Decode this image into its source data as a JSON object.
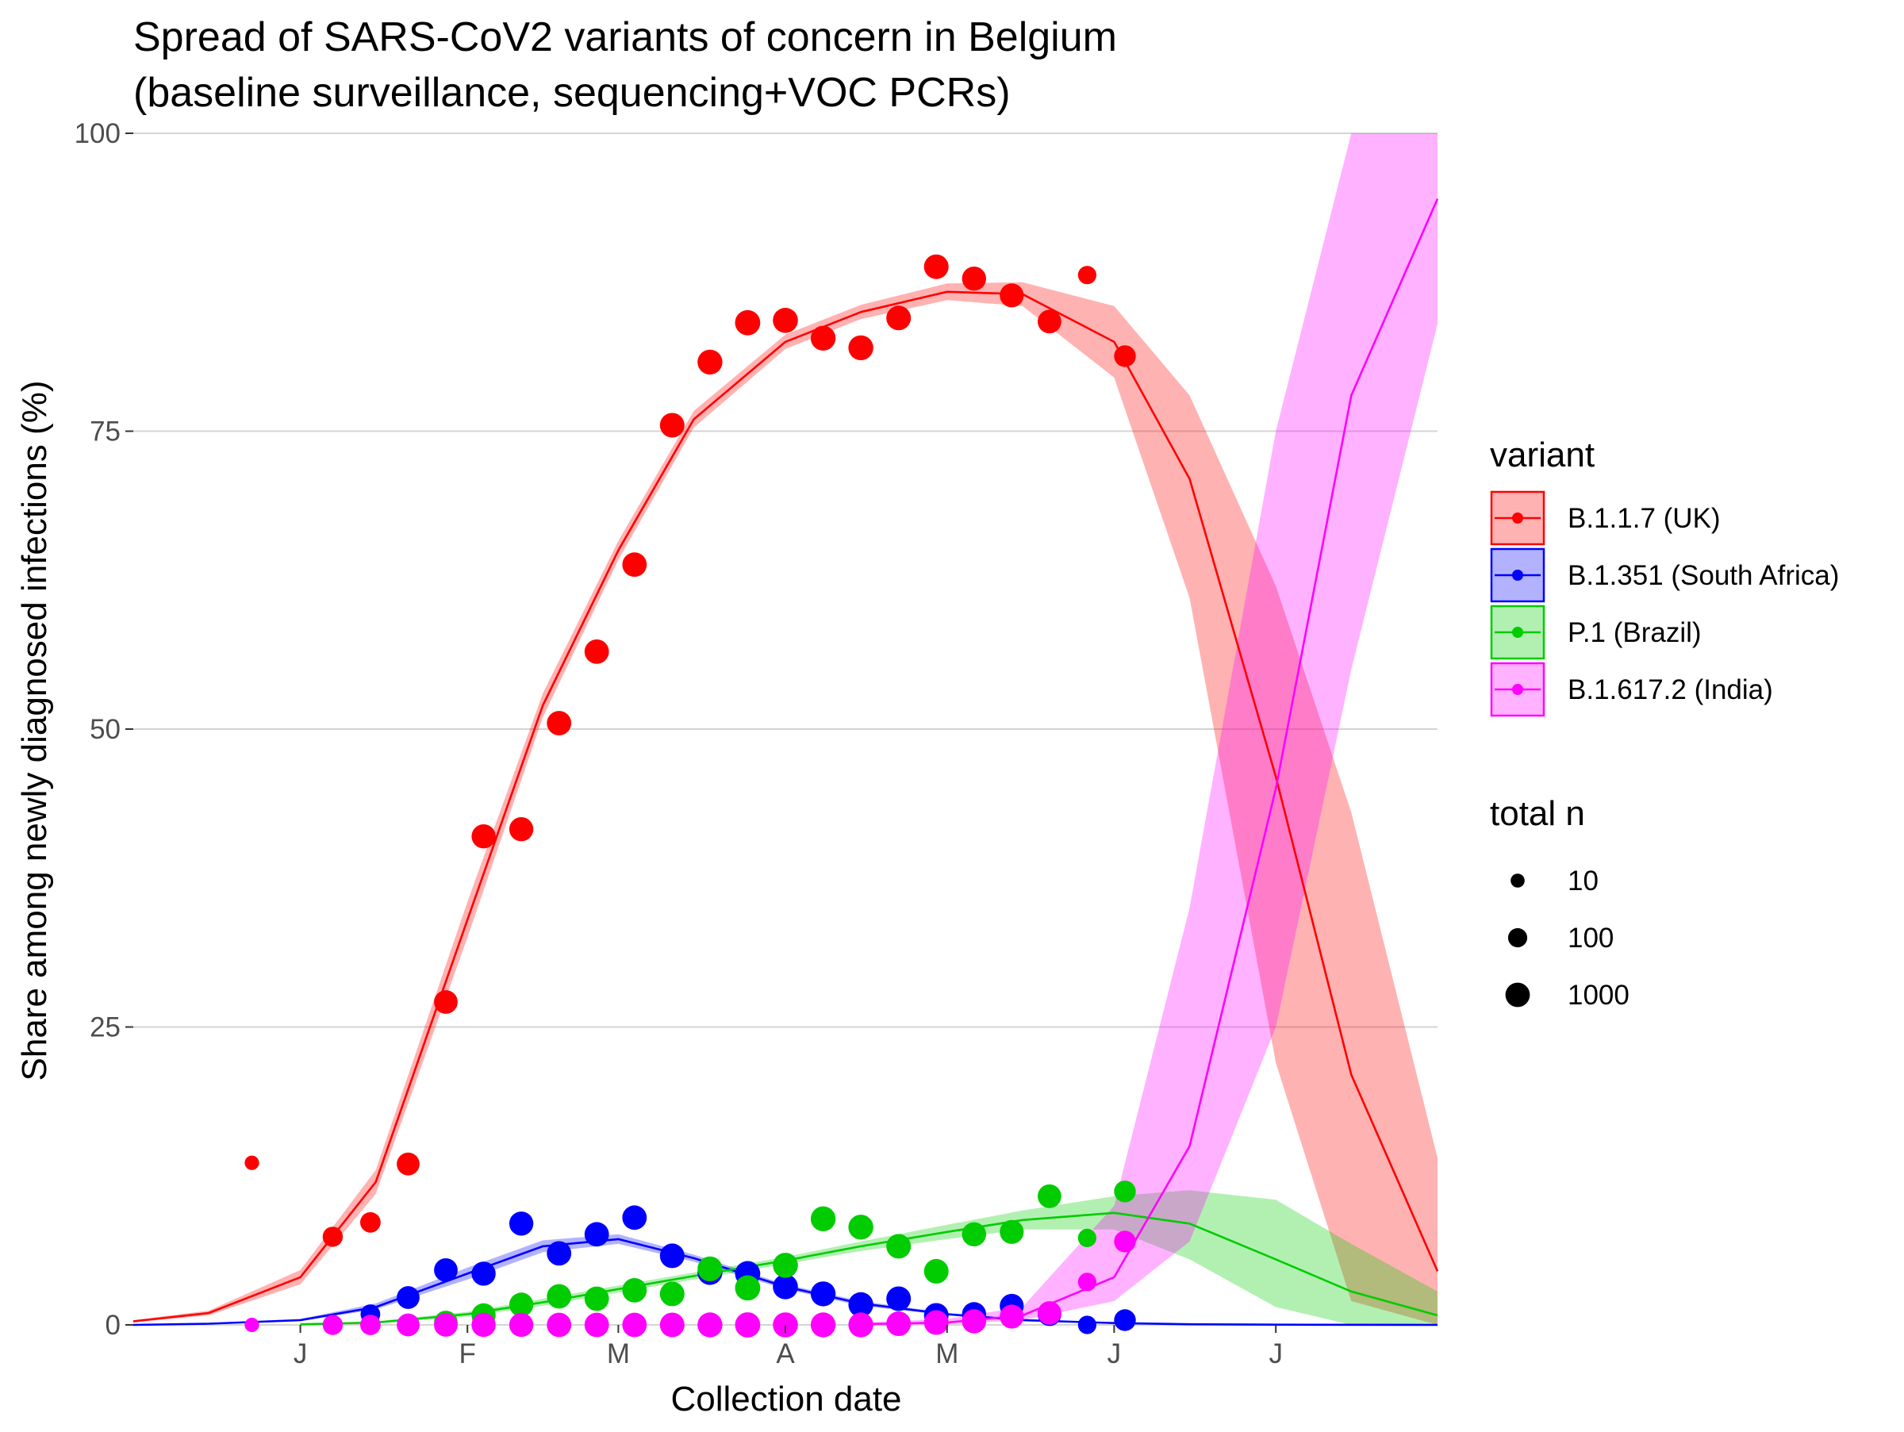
{
  "chart_data": {
    "type": "scatter",
    "title": "Spread of SARS-CoV2 variants of concern in Belgium",
    "subtitle": "(baseline surveillance, sequencing+VOC PCRs)",
    "xlabel": "Collection date",
    "ylabel": "Share among newly diagnosed infections (%)",
    "ylim": [
      0,
      100
    ],
    "yticks": [
      0,
      25,
      50,
      75,
      100
    ],
    "xlim": [
      "2020-12-01",
      "2021-07-31"
    ],
    "xticks": [
      {
        "date": "2021-01-01",
        "label": "J"
      },
      {
        "date": "2021-02-01",
        "label": "F"
      },
      {
        "date": "2021-03-01",
        "label": "M"
      },
      {
        "date": "2021-04-01",
        "label": "A"
      },
      {
        "date": "2021-05-01",
        "label": "M"
      },
      {
        "date": "2021-06-01",
        "label": "J"
      },
      {
        "date": "2021-07-01",
        "label": "J"
      }
    ],
    "grid": "horizontal major",
    "legend_position": "right",
    "legend": {
      "color_title": "variant",
      "size_title": "total n",
      "size_entries": [
        {
          "label": "10",
          "n": 10
        },
        {
          "label": "100",
          "n": 100
        },
        {
          "label": "1000",
          "n": 1000
        }
      ]
    },
    "series": [
      {
        "name": "B.1.1.7 (UK)",
        "color": "#ff0000",
        "band_color": "#ff0000",
        "points": [
          {
            "x": "2020-12-23",
            "y": 13.6,
            "n": 12
          },
          {
            "x": "2021-01-07",
            "y": 7.4,
            "n": 150
          },
          {
            "x": "2021-01-14",
            "y": 8.6,
            "n": 180
          },
          {
            "x": "2021-01-21",
            "y": 13.5,
            "n": 500
          },
          {
            "x": "2021-01-28",
            "y": 27.1,
            "n": 700
          },
          {
            "x": "2021-02-04",
            "y": 41.0,
            "n": 900
          },
          {
            "x": "2021-02-11",
            "y": 41.6,
            "n": 900
          },
          {
            "x": "2021-02-18",
            "y": 50.5,
            "n": 1000
          },
          {
            "x": "2021-02-25",
            "y": 56.5,
            "n": 1000
          },
          {
            "x": "2021-03-04",
            "y": 63.8,
            "n": 1000
          },
          {
            "x": "2021-03-11",
            "y": 75.5,
            "n": 1100
          },
          {
            "x": "2021-03-18",
            "y": 80.8,
            "n": 1200
          },
          {
            "x": "2021-03-25",
            "y": 84.1,
            "n": 1400
          },
          {
            "x": "2021-04-01",
            "y": 84.3,
            "n": 1300
          },
          {
            "x": "2021-04-08",
            "y": 82.8,
            "n": 1200
          },
          {
            "x": "2021-04-15",
            "y": 82.0,
            "n": 1200
          },
          {
            "x": "2021-04-22",
            "y": 84.5,
            "n": 1100
          },
          {
            "x": "2021-04-29",
            "y": 88.8,
            "n": 1100
          },
          {
            "x": "2021-05-06",
            "y": 87.8,
            "n": 900
          },
          {
            "x": "2021-05-13",
            "y": 86.4,
            "n": 800
          },
          {
            "x": "2021-05-20",
            "y": 84.2,
            "n": 700
          },
          {
            "x": "2021-05-27",
            "y": 88.1,
            "n": 70
          },
          {
            "x": "2021-06-03",
            "y": 81.3,
            "n": 300
          }
        ],
        "fit": [
          {
            "x": "2020-12-01",
            "y": 0.3,
            "lo": 0.2,
            "hi": 0.4
          },
          {
            "x": "2020-12-15",
            "y": 1.0,
            "lo": 0.8,
            "hi": 1.2
          },
          {
            "x": "2021-01-01",
            "y": 4.0,
            "lo": 3.4,
            "hi": 4.6
          },
          {
            "x": "2021-01-15",
            "y": 12.0,
            "lo": 11.0,
            "hi": 13.0
          },
          {
            "x": "2021-02-01",
            "y": 34.0,
            "lo": 32.5,
            "hi": 35.5
          },
          {
            "x": "2021-02-15",
            "y": 52.0,
            "lo": 51.0,
            "hi": 53.0
          },
          {
            "x": "2021-03-01",
            "y": 65.0,
            "lo": 64.2,
            "hi": 65.8
          },
          {
            "x": "2021-03-15",
            "y": 76.0,
            "lo": 75.3,
            "hi": 76.7
          },
          {
            "x": "2021-04-01",
            "y": 82.5,
            "lo": 81.9,
            "hi": 83.1
          },
          {
            "x": "2021-04-15",
            "y": 85.0,
            "lo": 84.4,
            "hi": 85.6
          },
          {
            "x": "2021-05-01",
            "y": 86.7,
            "lo": 86.0,
            "hi": 87.4
          },
          {
            "x": "2021-05-15",
            "y": 86.5,
            "lo": 85.5,
            "hi": 87.5
          },
          {
            "x": "2021-06-01",
            "y": 82.5,
            "lo": 79.5,
            "hi": 85.5
          },
          {
            "x": "2021-06-15",
            "y": 71.0,
            "lo": 61.0,
            "hi": 78.0
          },
          {
            "x": "2021-07-01",
            "y": 46.0,
            "lo": 22.0,
            "hi": 62.0
          },
          {
            "x": "2021-07-15",
            "y": 21.0,
            "lo": 2.0,
            "hi": 43.0
          },
          {
            "x": "2021-07-31",
            "y": 4.5,
            "lo": 0.0,
            "hi": 14.0
          }
        ]
      },
      {
        "name": "B.1.351 (South Africa)",
        "color": "#0000ff",
        "band_color": "#0000ff",
        "points": [
          {
            "x": "2021-01-14",
            "y": 0.9,
            "n": 120
          },
          {
            "x": "2021-01-21",
            "y": 2.3,
            "n": 500
          },
          {
            "x": "2021-01-28",
            "y": 4.6,
            "n": 700
          },
          {
            "x": "2021-02-04",
            "y": 4.3,
            "n": 900
          },
          {
            "x": "2021-02-11",
            "y": 8.5,
            "n": 900
          },
          {
            "x": "2021-02-18",
            "y": 6.0,
            "n": 1000
          },
          {
            "x": "2021-02-25",
            "y": 7.6,
            "n": 1000
          },
          {
            "x": "2021-03-04",
            "y": 9.0,
            "n": 1000
          },
          {
            "x": "2021-03-11",
            "y": 5.8,
            "n": 1100
          },
          {
            "x": "2021-03-18",
            "y": 4.4,
            "n": 1200
          },
          {
            "x": "2021-03-25",
            "y": 4.3,
            "n": 1400
          },
          {
            "x": "2021-04-01",
            "y": 3.2,
            "n": 1300
          },
          {
            "x": "2021-04-08",
            "y": 2.6,
            "n": 1200
          },
          {
            "x": "2021-04-15",
            "y": 1.7,
            "n": 1200
          },
          {
            "x": "2021-04-22",
            "y": 2.2,
            "n": 1100
          },
          {
            "x": "2021-04-29",
            "y": 0.8,
            "n": 1100
          },
          {
            "x": "2021-05-06",
            "y": 0.9,
            "n": 900
          },
          {
            "x": "2021-05-13",
            "y": 1.6,
            "n": 800
          },
          {
            "x": "2021-05-20",
            "y": 0.9,
            "n": 700
          },
          {
            "x": "2021-05-27",
            "y": 0.0,
            "n": 70
          },
          {
            "x": "2021-06-03",
            "y": 0.4,
            "n": 300
          }
        ],
        "fit": [
          {
            "x": "2020-12-01",
            "y": 0.0,
            "lo": 0.0,
            "hi": 0.05
          },
          {
            "x": "2020-12-15",
            "y": 0.1,
            "lo": 0.05,
            "hi": 0.15
          },
          {
            "x": "2021-01-01",
            "y": 0.4,
            "lo": 0.3,
            "hi": 0.5
          },
          {
            "x": "2021-01-15",
            "y": 1.5,
            "lo": 1.3,
            "hi": 1.8
          },
          {
            "x": "2021-02-01",
            "y": 4.3,
            "lo": 3.8,
            "hi": 4.8
          },
          {
            "x": "2021-02-15",
            "y": 6.6,
            "lo": 6.1,
            "hi": 7.1
          },
          {
            "x": "2021-03-01",
            "y": 7.2,
            "lo": 6.8,
            "hi": 7.6
          },
          {
            "x": "2021-03-15",
            "y": 5.6,
            "lo": 5.3,
            "hi": 5.9
          },
          {
            "x": "2021-04-01",
            "y": 3.2,
            "lo": 3.0,
            "hi": 3.4
          },
          {
            "x": "2021-04-15",
            "y": 1.8,
            "lo": 1.6,
            "hi": 2.0
          },
          {
            "x": "2021-05-01",
            "y": 0.9,
            "lo": 0.8,
            "hi": 1.0
          },
          {
            "x": "2021-05-15",
            "y": 0.4,
            "lo": 0.3,
            "hi": 0.5
          },
          {
            "x": "2021-06-01",
            "y": 0.15,
            "lo": 0.1,
            "hi": 0.2
          },
          {
            "x": "2021-06-15",
            "y": 0.05,
            "lo": 0.02,
            "hi": 0.1
          },
          {
            "x": "2021-07-01",
            "y": 0.02,
            "lo": 0.0,
            "hi": 0.05
          },
          {
            "x": "2021-07-31",
            "y": 0.0,
            "lo": 0.0,
            "hi": 0.02
          }
        ]
      },
      {
        "name": "P.1 (Brazil)",
        "color": "#00cc00",
        "band_color": "#00cc00",
        "points": [
          {
            "x": "2021-01-28",
            "y": 0.2,
            "n": 700
          },
          {
            "x": "2021-02-04",
            "y": 0.8,
            "n": 900
          },
          {
            "x": "2021-02-11",
            "y": 1.7,
            "n": 900
          },
          {
            "x": "2021-02-18",
            "y": 2.4,
            "n": 1000
          },
          {
            "x": "2021-02-25",
            "y": 2.2,
            "n": 1000
          },
          {
            "x": "2021-03-04",
            "y": 2.9,
            "n": 1000
          },
          {
            "x": "2021-03-11",
            "y": 2.6,
            "n": 1100
          },
          {
            "x": "2021-03-18",
            "y": 4.7,
            "n": 1200
          },
          {
            "x": "2021-03-25",
            "y": 3.1,
            "n": 1400
          },
          {
            "x": "2021-04-01",
            "y": 5.0,
            "n": 1300
          },
          {
            "x": "2021-04-08",
            "y": 8.9,
            "n": 1200
          },
          {
            "x": "2021-04-15",
            "y": 8.2,
            "n": 1200
          },
          {
            "x": "2021-04-22",
            "y": 6.6,
            "n": 1100
          },
          {
            "x": "2021-04-29",
            "y": 4.5,
            "n": 1100
          },
          {
            "x": "2021-05-06",
            "y": 7.6,
            "n": 900
          },
          {
            "x": "2021-05-13",
            "y": 7.8,
            "n": 800
          },
          {
            "x": "2021-05-20",
            "y": 10.8,
            "n": 700
          },
          {
            "x": "2021-05-27",
            "y": 7.3,
            "n": 70
          },
          {
            "x": "2021-06-03",
            "y": 11.2,
            "n": 300
          }
        ],
        "fit": [
          {
            "x": "2021-01-01",
            "y": 0.05,
            "lo": 0.02,
            "hi": 0.1
          },
          {
            "x": "2021-01-15",
            "y": 0.2,
            "lo": 0.1,
            "hi": 0.3
          },
          {
            "x": "2021-02-01",
            "y": 0.9,
            "lo": 0.7,
            "hi": 1.1
          },
          {
            "x": "2021-02-15",
            "y": 1.9,
            "lo": 1.6,
            "hi": 2.2
          },
          {
            "x": "2021-03-01",
            "y": 3.0,
            "lo": 2.7,
            "hi": 3.3
          },
          {
            "x": "2021-03-15",
            "y": 4.1,
            "lo": 3.8,
            "hi": 4.4
          },
          {
            "x": "2021-04-01",
            "y": 5.4,
            "lo": 5.1,
            "hi": 5.7
          },
          {
            "x": "2021-04-15",
            "y": 6.6,
            "lo": 6.2,
            "hi": 7.0
          },
          {
            "x": "2021-05-01",
            "y": 7.8,
            "lo": 7.2,
            "hi": 8.4
          },
          {
            "x": "2021-05-15",
            "y": 8.8,
            "lo": 8.0,
            "hi": 9.6
          },
          {
            "x": "2021-06-01",
            "y": 9.4,
            "lo": 8.0,
            "hi": 10.8
          },
          {
            "x": "2021-06-15",
            "y": 8.5,
            "lo": 5.5,
            "hi": 11.3
          },
          {
            "x": "2021-07-01",
            "y": 5.5,
            "lo": 1.5,
            "hi": 10.5
          },
          {
            "x": "2021-07-15",
            "y": 2.8,
            "lo": 0.0,
            "hi": 6.8
          },
          {
            "x": "2021-07-31",
            "y": 0.8,
            "lo": 0.0,
            "hi": 2.8
          }
        ]
      },
      {
        "name": "B.1.617.2 (India)",
        "color": "#ff00ff",
        "band_color": "#ff00ff",
        "points": [
          {
            "x": "2020-12-23",
            "y": 0.0,
            "n": 12
          },
          {
            "x": "2021-01-07",
            "y": 0.0,
            "n": 150
          },
          {
            "x": "2021-01-14",
            "y": 0.0,
            "n": 180
          },
          {
            "x": "2021-01-21",
            "y": 0.0,
            "n": 500
          },
          {
            "x": "2021-01-28",
            "y": 0.0,
            "n": 700
          },
          {
            "x": "2021-02-04",
            "y": 0.0,
            "n": 900
          },
          {
            "x": "2021-02-11",
            "y": 0.0,
            "n": 900
          },
          {
            "x": "2021-02-18",
            "y": 0.0,
            "n": 1000
          },
          {
            "x": "2021-02-25",
            "y": 0.0,
            "n": 1000
          },
          {
            "x": "2021-03-04",
            "y": 0.0,
            "n": 1000
          },
          {
            "x": "2021-03-11",
            "y": 0.0,
            "n": 1100
          },
          {
            "x": "2021-03-18",
            "y": 0.0,
            "n": 1200
          },
          {
            "x": "2021-03-25",
            "y": 0.0,
            "n": 1400
          },
          {
            "x": "2021-04-01",
            "y": 0.0,
            "n": 1300
          },
          {
            "x": "2021-04-08",
            "y": 0.0,
            "n": 1200
          },
          {
            "x": "2021-04-15",
            "y": 0.0,
            "n": 1200
          },
          {
            "x": "2021-04-22",
            "y": 0.1,
            "n": 1100
          },
          {
            "x": "2021-04-29",
            "y": 0.2,
            "n": 1100
          },
          {
            "x": "2021-05-06",
            "y": 0.3,
            "n": 900
          },
          {
            "x": "2021-05-13",
            "y": 0.7,
            "n": 800
          },
          {
            "x": "2021-05-20",
            "y": 1.0,
            "n": 700
          },
          {
            "x": "2021-05-27",
            "y": 3.6,
            "n": 70
          },
          {
            "x": "2021-06-03",
            "y": 7.0,
            "n": 300
          }
        ],
        "fit": [
          {
            "x": "2021-04-15",
            "y": 0.05,
            "lo": 0.0,
            "hi": 0.2
          },
          {
            "x": "2021-05-01",
            "y": 0.2,
            "lo": 0.05,
            "hi": 0.5
          },
          {
            "x": "2021-05-15",
            "y": 0.8,
            "lo": 0.4,
            "hi": 1.5
          },
          {
            "x": "2021-06-01",
            "y": 4.0,
            "lo": 2.0,
            "hi": 10.0
          },
          {
            "x": "2021-06-15",
            "y": 15.0,
            "lo": 7.0,
            "hi": 35.0
          },
          {
            "x": "2021-07-01",
            "y": 45.0,
            "lo": 25.0,
            "hi": 75.0
          },
          {
            "x": "2021-07-15",
            "y": 78.0,
            "lo": 55.0,
            "hi": 100.0
          },
          {
            "x": "2021-07-31",
            "y": 94.5,
            "lo": 84.0,
            "hi": 100.0
          }
        ]
      }
    ]
  }
}
